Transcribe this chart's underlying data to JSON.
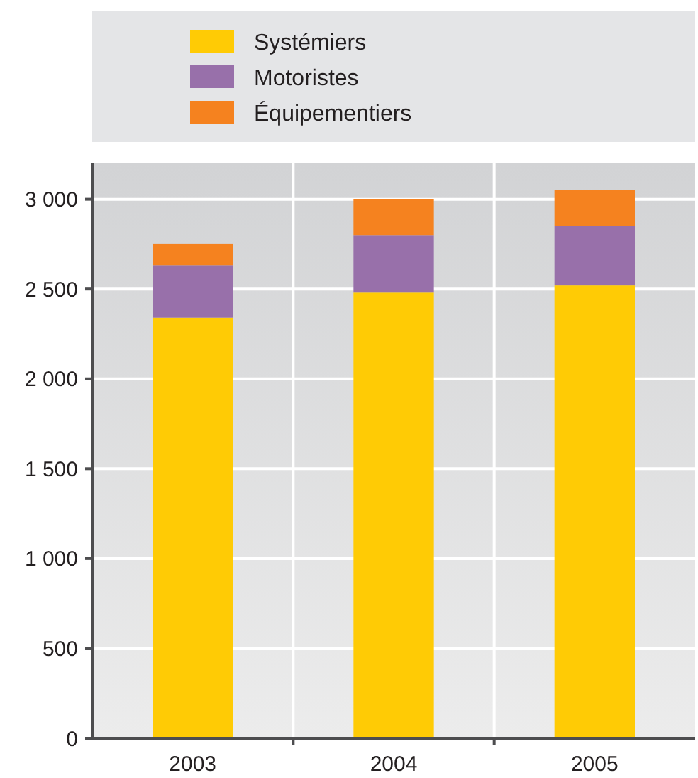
{
  "chart_data": {
    "type": "bar",
    "stacked": true,
    "categories": [
      "2003",
      "2004",
      "2005"
    ],
    "series": [
      {
        "name": "Systémiers",
        "color": "#ffcb05",
        "values": [
          2340,
          2480,
          2520
        ]
      },
      {
        "name": "Motoristes",
        "color": "#9870aa",
        "values": [
          290,
          320,
          330
        ]
      },
      {
        "name": "Équipementiers",
        "color": "#f5821f",
        "values": [
          120,
          200,
          200
        ]
      }
    ],
    "ylim": [
      0,
      3200
    ],
    "yticks": [
      {
        "value": 0,
        "label": "0"
      },
      {
        "value": 500,
        "label": "500"
      },
      {
        "value": 1000,
        "label": "1 000"
      },
      {
        "value": 1500,
        "label": "1 500"
      },
      {
        "value": 2000,
        "label": "2 000"
      },
      {
        "value": 2500,
        "label": "2 500"
      },
      {
        "value": 3000,
        "label": "3 000"
      }
    ],
    "grid": true,
    "legend": "top"
  }
}
